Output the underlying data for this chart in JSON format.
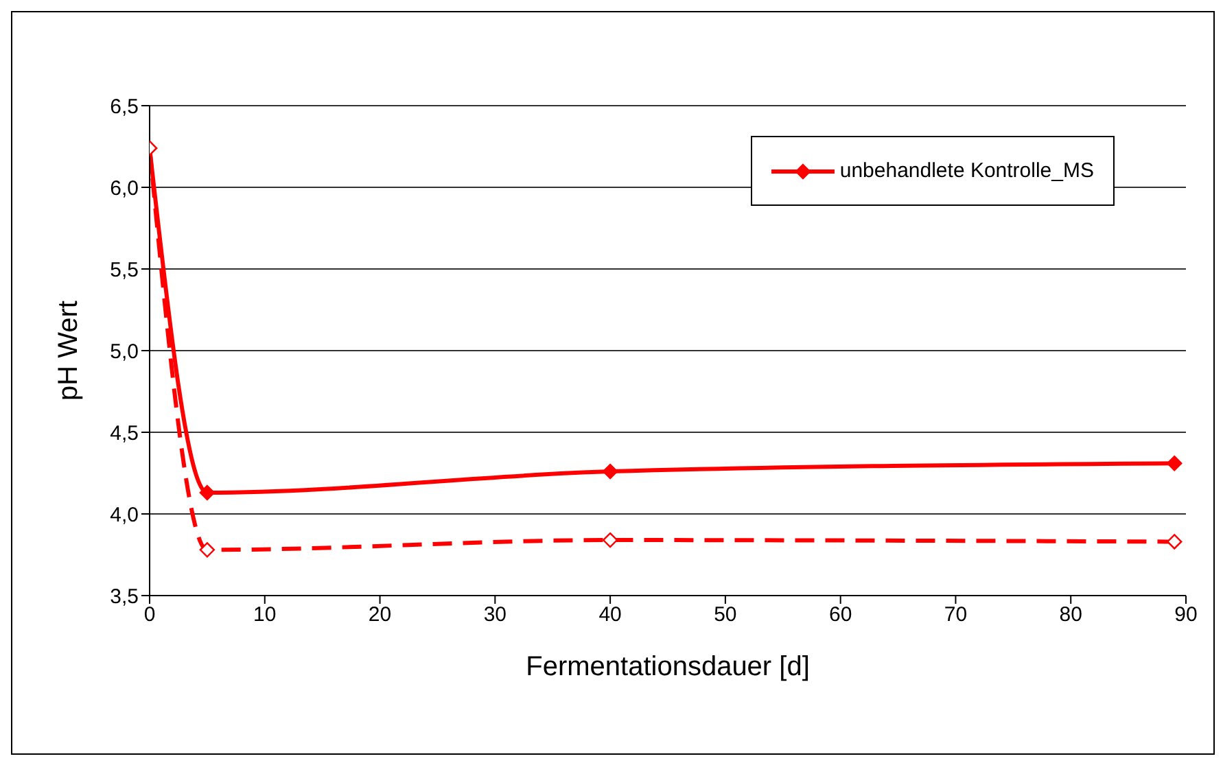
{
  "chart_data": {
    "type": "line",
    "xlabel": "Fermentationsdauer [d]",
    "ylabel": "pH Wert",
    "xlim": [
      0,
      90
    ],
    "xticks": [
      0,
      10,
      20,
      30,
      40,
      50,
      60,
      70,
      80,
      90
    ],
    "ylim": [
      3.5,
      6.5
    ],
    "yticks": [
      {
        "value": 3.5,
        "label": "3,5"
      },
      {
        "value": 4,
        "label": "4,0"
      },
      {
        "value": 4.5,
        "label": "4,5"
      },
      {
        "value": 5,
        "label": "5,0"
      },
      {
        "value": 5.5,
        "label": "5,5"
      },
      {
        "value": 6,
        "label": "6,0"
      },
      {
        "value": 6.5,
        "label": "6,5"
      }
    ],
    "grid": "y",
    "legend": "top right",
    "marker": "diamond",
    "series": [
      {
        "name": "unbehandlete Kontrolle_MS",
        "color": "#ff0000",
        "x": [
          0,
          5,
          40,
          89
        ],
        "values": [
          6.24,
          4.13,
          4.26,
          4.31
        ],
        "line_style": "solid"
      },
      {
        "color": "#ff0000",
        "x": [
          0,
          5,
          40,
          89
        ],
        "values": [
          6.24,
          3.78,
          3.84,
          3.83
        ],
        "line_style": "dashed"
      }
    ]
  }
}
